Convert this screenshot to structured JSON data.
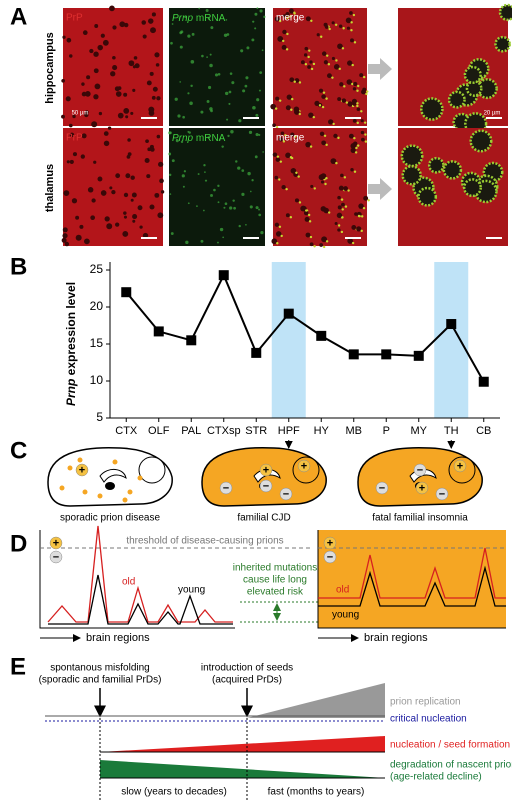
{
  "panel_labels": [
    "A",
    "B",
    "C",
    "D",
    "E"
  ],
  "panel_a": {
    "col_prp": "PrP",
    "col_mrna_italic": "Prnp",
    "col_mrna": "mRNA",
    "col_merge": "merge",
    "rows": [
      "hippocampus",
      "thalamus"
    ],
    "scale_50": "50 µm",
    "scale_20": "20 µm"
  },
  "chart_data": {
    "type": "line",
    "ylabel_italic": "Prnp",
    "ylabel": "expression level",
    "categories": [
      "CTX",
      "OLF",
      "PAL",
      "CTXsp",
      "STR",
      "HPF",
      "HY",
      "MB",
      "P",
      "MY",
      "TH",
      "CB"
    ],
    "values": [
      22,
      16.7,
      15.5,
      24.3,
      13.8,
      19.1,
      16.1,
      13.6,
      13.6,
      13.4,
      17.7,
      9.9
    ],
    "color": "#000000",
    "highlight": [
      5,
      10
    ],
    "highlight_color": "#bfe3f7",
    "ylim": [
      5,
      25
    ],
    "yticks": [
      5,
      10,
      15,
      20,
      25
    ]
  },
  "symbols": {
    "plus": "+",
    "minus": "−"
  },
  "panel_c": {
    "labels": [
      "sporadic prion disease",
      "familial CJD",
      "fatal familial insomnia"
    ]
  },
  "panel_d": {
    "threshold": "threshold of disease-causing prions",
    "old": "old",
    "young": "young",
    "inherited": [
      "inherited mutations",
      "cause life long",
      "elevated risk"
    ],
    "brain_regions": "brain regions"
  },
  "panel_e": {
    "spontaneous": [
      "spontanous misfolding",
      "(sporadic and familial PrDs)"
    ],
    "seeds": [
      "introduction of seeds",
      "(acquired PrDs)"
    ],
    "replication": "prion replication",
    "critical": "critical nucleation",
    "nucleation": "nucleation / seed formation",
    "degradation": [
      "degradation of nascent prions",
      "(age-related decline)"
    ],
    "slow": "slow (years to decades)",
    "fast": "fast (months to years)"
  }
}
